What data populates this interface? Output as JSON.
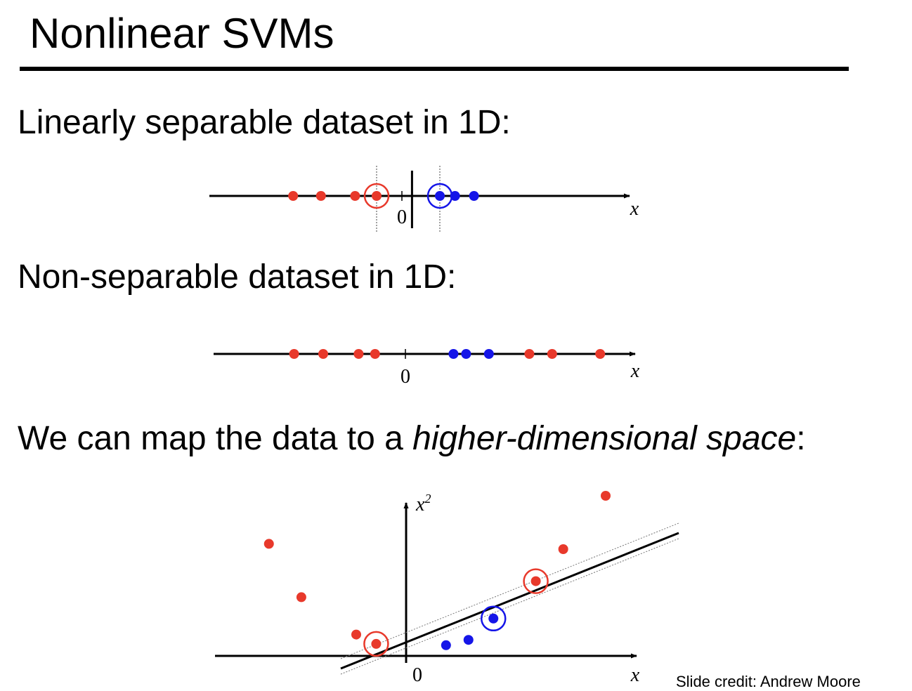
{
  "slide": {
    "title": "Nonlinear SVMs",
    "heading_separable": "Linearly separable dataset in 1D:",
    "heading_nonseparable": "Non-separable dataset in 1D:",
    "heading_map_prefix": "We can map the data to a ",
    "heading_map_emph": "higher-dimensional space",
    "heading_map_suffix": ":",
    "credit": "Slide credit: Andrew Moore"
  },
  "colors": {
    "class_neg": "#e8392b",
    "class_pos": "#1515e8",
    "axis": "#000000"
  },
  "diagrams": {
    "separable_1d": {
      "axis_label": "x",
      "origin_label": "0",
      "red_x": [
        -4.3,
        -3.2,
        -1.85,
        -1.0
      ],
      "blue_x": [
        1.5,
        2.1,
        2.85
      ],
      "support_vectors_x": [
        -1.0,
        1.5
      ],
      "boundary_x": 0.4
    },
    "nonseparable_1d": {
      "axis_label": "x",
      "origin_label": "0",
      "red_x": [
        -4.4,
        -3.25,
        -1.85,
        -1.2,
        4.9,
        5.8,
        7.7
      ],
      "blue_x": [
        1.9,
        2.4,
        3.3
      ]
    },
    "mapped_2d": {
      "x_label": "x",
      "y_label": "x",
      "y_label_sup": "2",
      "origin_label": "0",
      "red_points": [
        [
          -5.5,
          4.2
        ],
        [
          -4.2,
          2.2
        ],
        [
          -2.0,
          0.8
        ],
        [
          -1.2,
          0.45
        ],
        [
          5.2,
          2.8
        ],
        [
          6.3,
          4.0
        ],
        [
          8.0,
          6.0
        ]
      ],
      "blue_points": [
        [
          1.6,
          0.4
        ],
        [
          2.5,
          0.6
        ],
        [
          3.5,
          1.4
        ]
      ],
      "support_vectors": [
        [
          -1.2,
          0.45
        ],
        [
          3.5,
          1.4
        ],
        [
          5.2,
          2.8
        ]
      ]
    }
  }
}
